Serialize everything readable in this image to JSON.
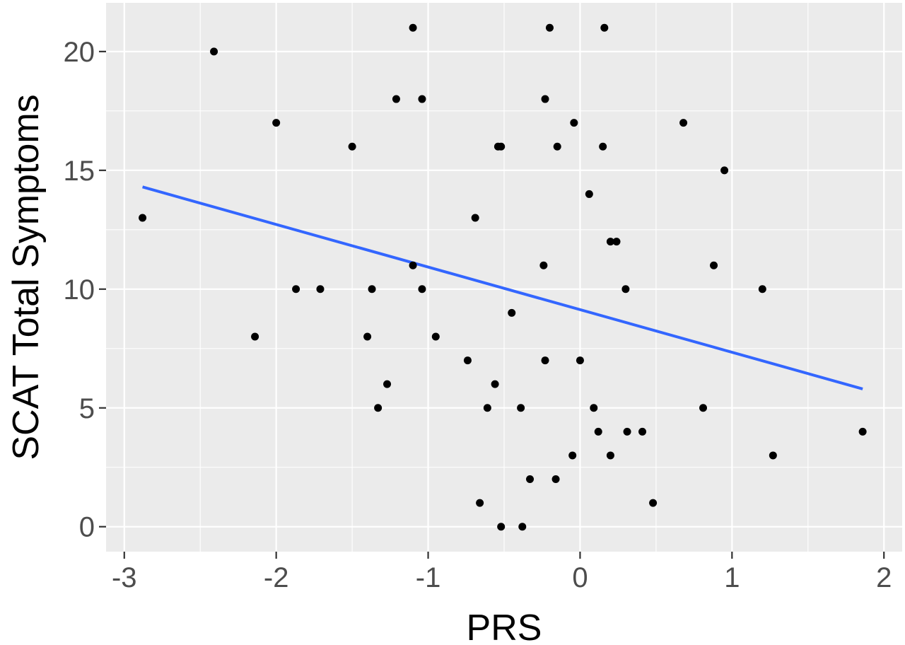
{
  "chart_data": {
    "type": "scatter",
    "title": "",
    "xlabel": "PRS",
    "ylabel": "SCAT Total Symptoms",
    "xlim": [
      -3.12,
      2.12
    ],
    "ylim": [
      -1.05,
      22.05
    ],
    "x_ticks": [
      -3,
      -2,
      -1,
      0,
      1,
      2
    ],
    "x_tick_labels": [
      "-3",
      "-2",
      "-1",
      "0",
      "1",
      "2"
    ],
    "y_ticks": [
      0,
      5,
      10,
      15,
      20
    ],
    "y_tick_labels": [
      "0",
      "5",
      "10",
      "15",
      "20"
    ],
    "grid": true,
    "legend": "none",
    "colors": {
      "panel": "#ebebeb",
      "points": "#000000",
      "fit_line": "#3366ff"
    },
    "series": [
      {
        "kind": "points",
        "x": [
          -2.88,
          -2.41,
          -2.0,
          -2.14,
          -1.87,
          -1.71,
          -1.5,
          -1.37,
          -1.4,
          -1.33,
          -1.27,
          -1.21,
          -1.1,
          -1.1,
          -1.04,
          -1.04,
          -0.95,
          -0.74,
          -0.69,
          -0.66,
          -0.61,
          -0.56,
          -0.54,
          -0.52,
          -0.52,
          -0.45,
          -0.39,
          -0.38,
          -0.33,
          -0.24,
          -0.23,
          -0.23,
          -0.2,
          -0.16,
          -0.15,
          -0.05,
          -0.04,
          0.0,
          0.06,
          0.09,
          0.12,
          0.15,
          0.16,
          0.2,
          0.2,
          0.24,
          0.3,
          0.31,
          0.41,
          0.48,
          0.68,
          0.81,
          0.88,
          0.95,
          1.2,
          1.27,
          1.86
        ],
        "y": [
          13,
          20,
          17,
          8,
          10,
          10,
          16,
          10,
          8,
          5,
          6,
          18,
          21,
          11,
          18,
          10,
          8,
          7,
          13,
          1,
          5,
          6,
          16,
          16,
          0,
          9,
          5,
          0,
          2,
          11,
          7,
          18,
          21,
          2,
          16,
          3,
          17,
          7,
          14,
          5,
          4,
          16,
          21,
          12,
          3,
          12,
          10,
          4,
          4,
          1,
          17,
          5,
          11,
          15,
          10,
          3,
          4
        ]
      },
      {
        "kind": "fit_line",
        "x": [
          -2.88,
          1.86
        ],
        "y": [
          14.3,
          5.8
        ]
      }
    ]
  }
}
